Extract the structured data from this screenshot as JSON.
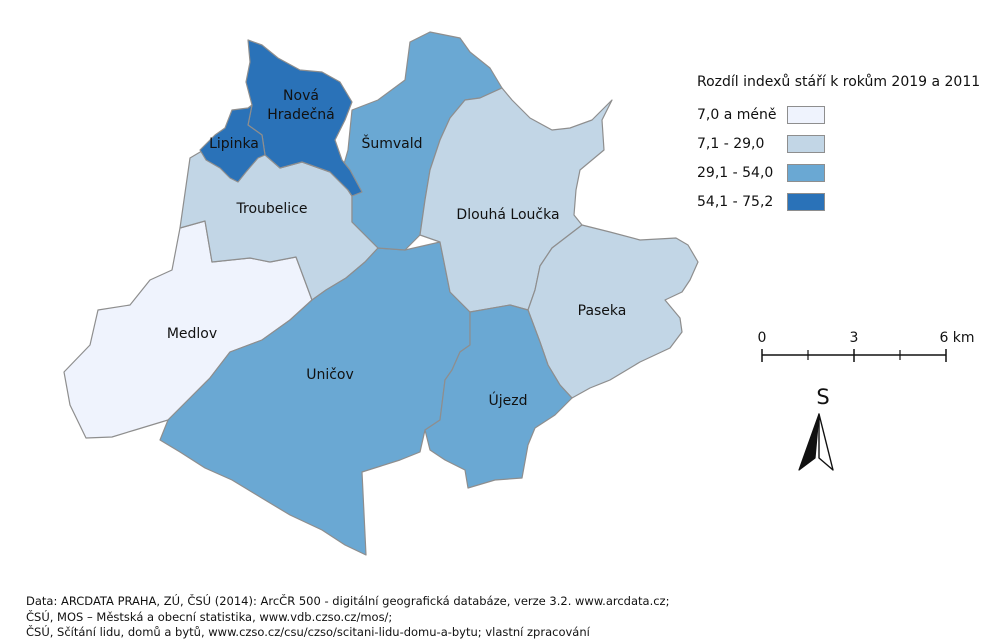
{
  "legend": {
    "title": "Rozdíl indexů stáří k rokům 2019 a 2011",
    "classes": [
      {
        "label": "7,0 a méně",
        "color": "#eff3fd"
      },
      {
        "label": "7,1 - 29,0",
        "color": "#c2d6e6"
      },
      {
        "label": "29,1 - 54,0",
        "color": "#6aa8d3"
      },
      {
        "label": "54,1 - 75,2",
        "color": "#2a72b8"
      }
    ]
  },
  "regions": [
    {
      "name": "Nová Hradečná",
      "label_lines": [
        "Nová",
        "Hradečná"
      ],
      "class": 3
    },
    {
      "name": "Lipinka",
      "label_lines": [
        "Lipinka"
      ],
      "class": 3
    },
    {
      "name": "Šumvald",
      "label_lines": [
        "Šumvald"
      ],
      "class": 2
    },
    {
      "name": "Troubelice",
      "label_lines": [
        "Troubelice"
      ],
      "class": 1
    },
    {
      "name": "Dlouhá Loučka",
      "label_lines": [
        "Dlouhá Loučka"
      ],
      "class": 1
    },
    {
      "name": "Medlov",
      "label_lines": [
        "Medlov"
      ],
      "class": 0
    },
    {
      "name": "Paseka",
      "label_lines": [
        "Paseka"
      ],
      "class": 1
    },
    {
      "name": "Uničov",
      "label_lines": [
        "Uničov"
      ],
      "class": 2
    },
    {
      "name": "Újezd",
      "label_lines": [
        "Újezd"
      ],
      "class": 2
    }
  ],
  "scale_bar": {
    "labels": [
      "0",
      "3",
      "6 km"
    ]
  },
  "north_arrow": {
    "label": "S",
    "icon": "north-arrow-icon"
  },
  "source": {
    "lines": [
      "Data: ARCDATA PRAHA, ZÚ, ČSÚ (2014): ArcČR 500 - digitální geografická databáze, verze 3.2. www.arcdata.cz;",
      "ČSÚ, MOS – Městská a obecní statistika, www.vdb.czso.cz/mos/;",
      "ČSÚ, Sčítání lidu, domů a bytů, www.czso.cz/csu/czso/scitani-lidu-domu-a-bytu; vlastní zpracování"
    ]
  }
}
